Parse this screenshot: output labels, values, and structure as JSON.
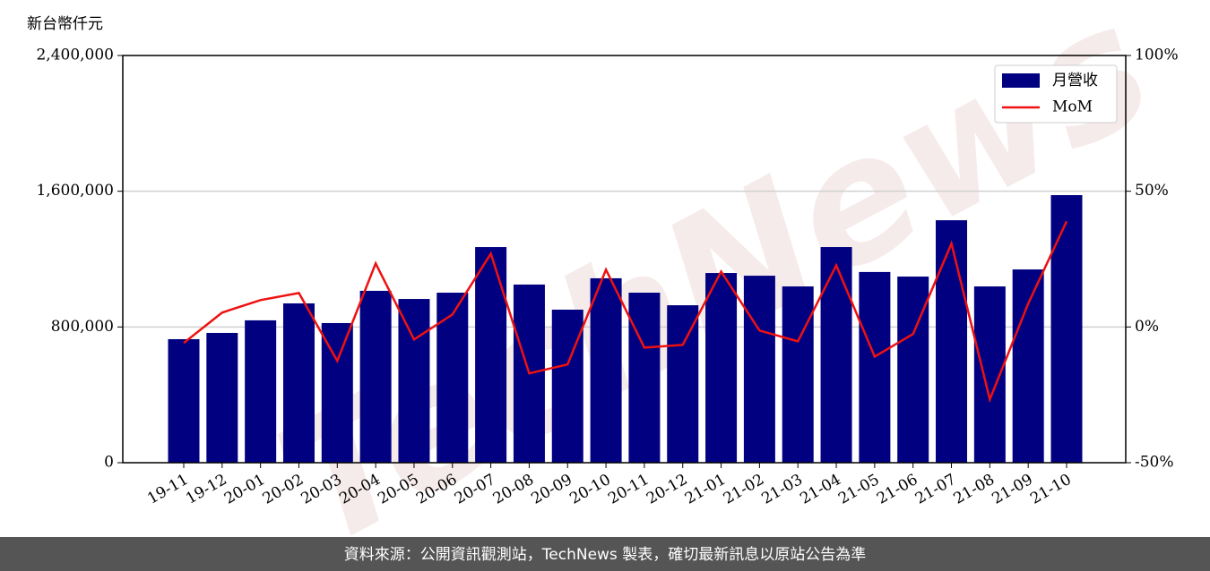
{
  "chart_data": {
    "type": "bar",
    "y_label": "新台幣仟元",
    "categories": [
      "19-11",
      "19-12",
      "20-01",
      "20-02",
      "20-03",
      "20-04",
      "20-05",
      "20-06",
      "20-07",
      "20-08",
      "20-09",
      "20-10",
      "20-11",
      "20-12",
      "21-01",
      "21-02",
      "21-03",
      "21-04",
      "21-05",
      "21-06",
      "21-07",
      "21-08",
      "21-09",
      "21-10"
    ],
    "series": [
      {
        "name": "月營收",
        "type": "bar",
        "color": "#000080",
        "values": [
          728000,
          765000,
          839000,
          939000,
          823000,
          1013000,
          965000,
          1002000,
          1271000,
          1050000,
          902000,
          1087000,
          1002000,
          928000,
          1118000,
          1102000,
          1039000,
          1271000,
          1124000,
          1097000,
          1429000,
          1039000,
          1139000,
          1577000
        ]
      },
      {
        "name": "MoM",
        "type": "line",
        "axis": "y2",
        "color": "#ee1111",
        "values": [
          -5.9,
          5.3,
          9.9,
          12.5,
          -12.5,
          23.4,
          -4.6,
          4.6,
          27.0,
          -17.1,
          -13.8,
          21.1,
          -7.6,
          -6.6,
          20.4,
          -1.3,
          -5.3,
          22.7,
          -10.9,
          -2.6,
          30.7,
          -26.7,
          8.6,
          38.9
        ]
      }
    ],
    "ylim": [
      0,
      2400000
    ],
    "yticks": [
      0,
      {
        "value": 800000,
        "label": "800,000"
      },
      {
        "value": 1600000,
        "label": "1,600,000"
      },
      {
        "value": 2400000,
        "label": "2,400,000"
      }
    ],
    "y2lim": [
      -50,
      100
    ],
    "y2ticks": [
      {
        "value": -50,
        "label": "-50%"
      },
      {
        "value": 0,
        "label": "0%"
      },
      {
        "value": 50,
        "label": "50%"
      },
      {
        "value": 100,
        "label": "100%"
      }
    ],
    "grid": true,
    "legend": "upper right",
    "watermark": "TechNews",
    "footer": "資料來源：公開資訊觀測站，TechNews 製表，確切最新訊息以原站公告為準"
  }
}
